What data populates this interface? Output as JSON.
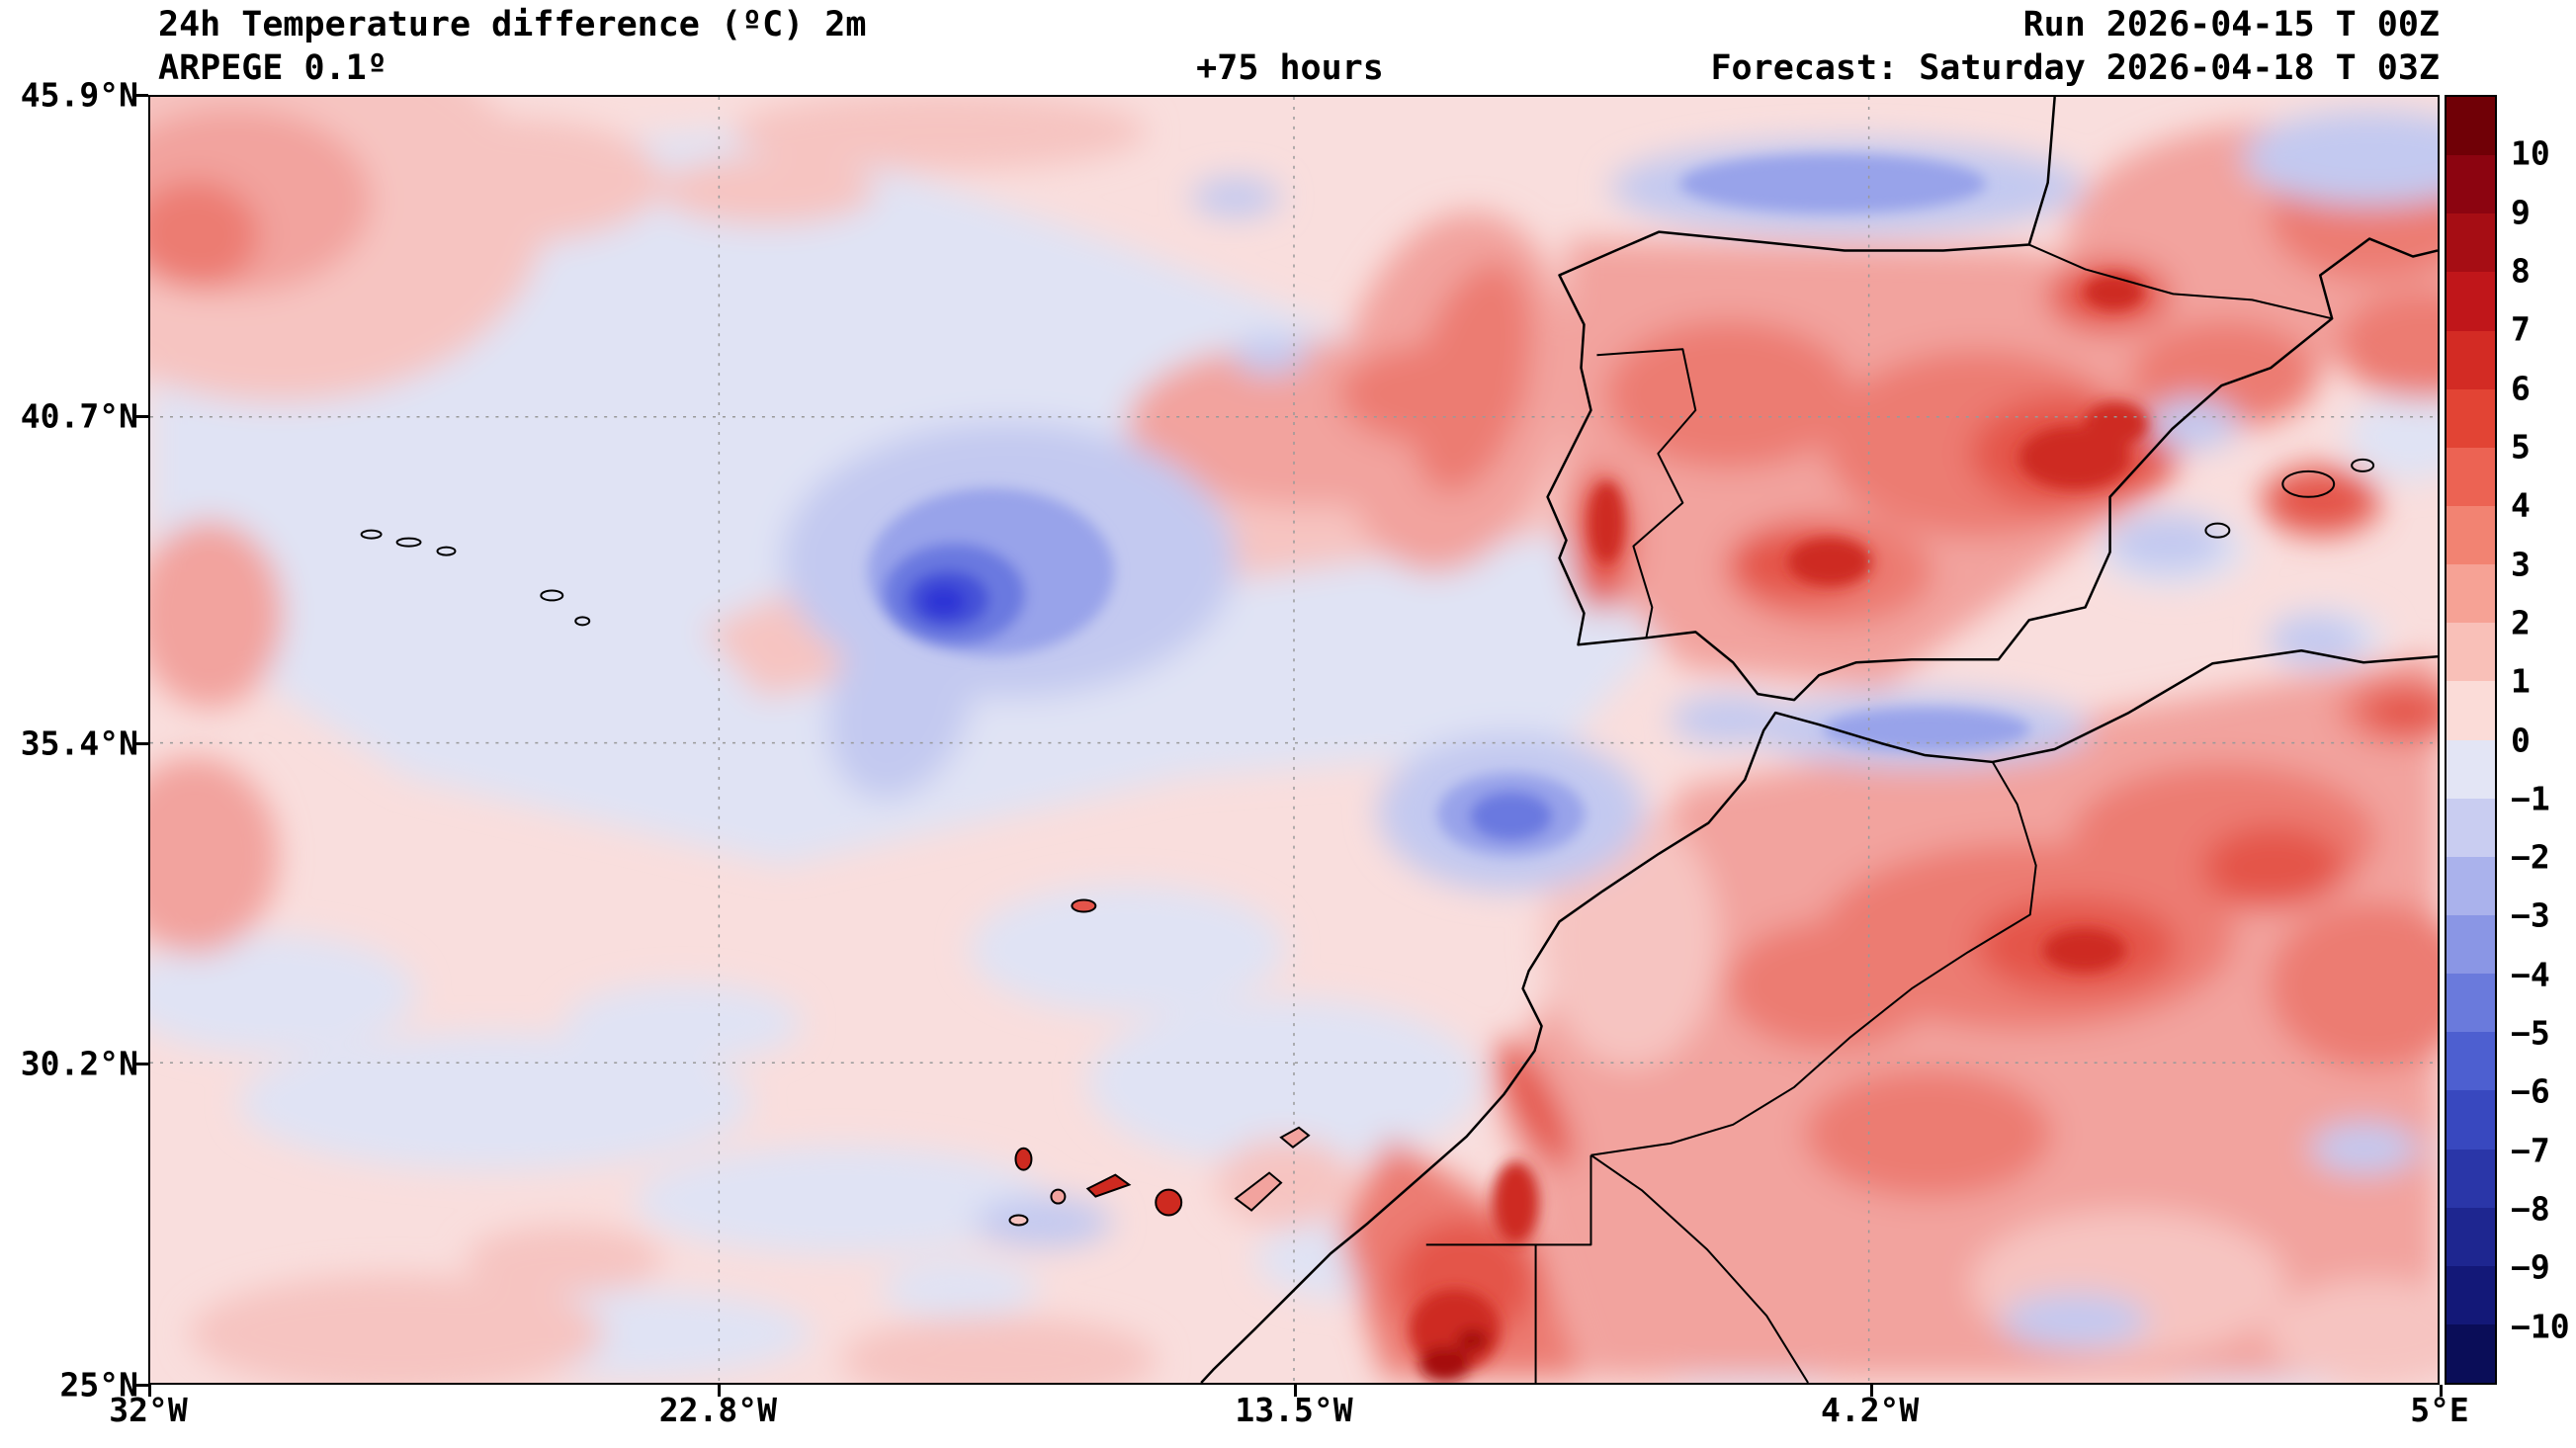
{
  "header": {
    "title": "24h Temperature difference (ºC) 2m",
    "model": "ARPEGE 0.1º",
    "lead_time": "+75 hours",
    "run": "Run 2026-04-15 T 00Z",
    "forecast": "Forecast: Saturday 2026-04-18 T 03Z"
  },
  "chart_data": {
    "type": "heatmap",
    "title": "24h Temperature difference (ºC) 2m",
    "model": "ARPEGE 0.1º",
    "lead_time_hours": 75,
    "run": "2026-04-15 00Z",
    "valid": "Saturday 2026-04-18 03Z",
    "grid": true,
    "x_axis": {
      "label": "longitude",
      "range": [
        -32,
        5
      ],
      "ticks": [
        {
          "value": -32,
          "label": "32°W"
        },
        {
          "value": -22.8,
          "label": "22.8°W"
        },
        {
          "value": -13.5,
          "label": "13.5°W"
        },
        {
          "value": -4.2,
          "label": "4.2°W"
        },
        {
          "value": 5,
          "label": "5°E"
        }
      ]
    },
    "y_axis": {
      "label": "latitude",
      "range": [
        25,
        45.9
      ],
      "ticks": [
        {
          "value": 45.9,
          "label": "45.9°N"
        },
        {
          "value": 40.7,
          "label": "40.7°N"
        },
        {
          "value": 35.4,
          "label": "35.4°N"
        },
        {
          "value": 30.2,
          "label": "30.2°N"
        },
        {
          "value": 25,
          "label": "25°N"
        }
      ]
    },
    "colorbar": {
      "unit": "ºC",
      "min": -10,
      "max": 10,
      "step": 1,
      "tick_labels": [
        "10",
        "9",
        "8",
        "7",
        "6",
        "5",
        "4",
        "3",
        "2",
        "1",
        "0",
        "−1",
        "−2",
        "−3",
        "−4",
        "−5",
        "−6",
        "−7",
        "−8",
        "−9",
        "−10"
      ],
      "cells": [
        "#700006",
        "#8c0410",
        "#a60d14",
        "#c0161a",
        "#d32b24",
        "#e24434",
        "#ec6353",
        "#f28372",
        "#f6a295",
        "#f9c0b8",
        "#fbdcd8",
        "#e3e5f5",
        "#c9cdf1",
        "#aab2ec",
        "#8a96e5",
        "#6a7adc",
        "#4d5fd0",
        "#3848bf",
        "#2a36a8",
        "#1e2690",
        "#131878",
        "#0a0d58"
      ]
    },
    "features": [
      {
        "region": "mid-Atlantic (~26°W, 37.5°N)",
        "anomaly_c": -5,
        "description": "pronounced cold pool with blue core"
      },
      {
        "region": "Atlantic west of Morocco (~17°W, 34°N)",
        "anomaly_c": -3,
        "description": "small cold spot"
      },
      {
        "region": "Bay of Biscay / north coast of Spain",
        "anomaly_c": -3,
        "description": "cold band along Cantabrian coast"
      },
      {
        "region": "Strait of Gibraltar / Alboran Sea",
        "anomaly_c": -3,
        "description": "narrow cold band"
      },
      {
        "region": "NE Spain / Ebro basin",
        "anomaly_c": 7,
        "description": "strong warming cores"
      },
      {
        "region": "central Iberia / Portugal interior",
        "anomaly_c": 6,
        "description": "widespread warming +3 to +6"
      },
      {
        "region": "SE France",
        "anomaly_c": 5,
        "description": "warming patch with dark core"
      },
      {
        "region": "Moroccan Atlas / Algeria interior",
        "anomaly_c": 5,
        "description": "broad warming"
      },
      {
        "region": "S Morocco / Western Sahara coast",
        "anomaly_c": 9,
        "description": "intense warming band along coast near bottom of map"
      },
      {
        "region": "open Atlantic (west half)",
        "anomaly_c": -1,
        "description": "weak cooling 0 to −2"
      },
      {
        "region": "subtropical Atlantic (south & corners)",
        "anomaly_c": 1,
        "description": "weak warming 0 to +2"
      }
    ],
    "map_features": [
      "Iberian Peninsula coastline",
      "French coast",
      "North Africa coastline",
      "Morocco–Algeria border",
      "Western Sahara borders",
      "Portugal–Spain border",
      "Pyrenees border",
      "Canary Islands",
      "Madeira",
      "Azores islets",
      "Balearic Islands"
    ]
  }
}
